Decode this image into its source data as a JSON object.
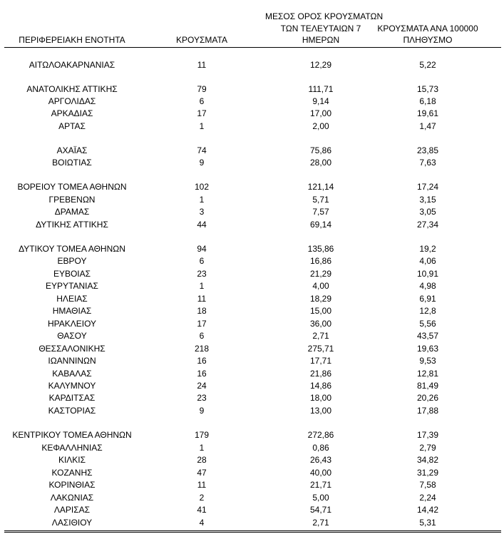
{
  "headers": {
    "region": "ΠΕΡΙΦΕΡΕΙΑΚΗ ΕΝΟΤΗΤΑ",
    "cases": "ΚΡΟΥΣΜΑΤΑ",
    "avg_line1": "ΜΕΣΟΣ ΟΡΟΣ ΚΡΟΥΣΜΑΤΩΝ",
    "avg_line2": "ΤΩΝ ΤΕΛΕΥΤΑΙΩΝ 7",
    "avg_line3": "ΗΜΕΡΩΝ",
    "per100k_line1": "ΚΡΟΥΣΜΑΤΑ ΑΝΑ 100000",
    "per100k_line2": "ΠΛΗΘΥΣΜΟ"
  },
  "rows": [
    [
      "ΑΙΤΩΛΟΑΚΑΡΝΑΝΙΑΣ",
      "11",
      "12,29",
      "5,22"
    ],
    [
      "ΑΝΑΤΟΛΙΚΗΣ ΑΤΤΙΚΗΣ",
      "79",
      "111,71",
      "15,73"
    ],
    [
      "ΑΡΓΟΛΙΔΑΣ",
      "6",
      "9,14",
      "6,18"
    ],
    [
      "ΑΡΚΑΔΙΑΣ",
      "17",
      "17,00",
      "19,61"
    ],
    [
      "ΑΡΤΑΣ",
      "1",
      "2,00",
      "1,47"
    ],
    [
      "ΑΧΑΪΑΣ",
      "74",
      "75,86",
      "23,85"
    ],
    [
      "ΒΟΙΩΤΙΑΣ",
      "9",
      "28,00",
      "7,63"
    ],
    [
      "ΒΟΡΕΙΟΥ ΤΟΜΕΑ ΑΘΗΝΩΝ",
      "102",
      "121,14",
      "17,24"
    ],
    [
      "ΓΡΕΒΕΝΩΝ",
      "1",
      "5,71",
      "3,15"
    ],
    [
      "ΔΡΑΜΑΣ",
      "3",
      "7,57",
      "3,05"
    ],
    [
      "ΔΥΤΙΚΗΣ ΑΤΤΙΚΗΣ",
      "44",
      "69,14",
      "27,34"
    ],
    [
      "ΔΥΤΙΚΟΥ ΤΟΜΕΑ ΑΘΗΝΩΝ",
      "94",
      "135,86",
      "19,2"
    ],
    [
      "ΕΒΡΟΥ",
      "6",
      "16,86",
      "4,06"
    ],
    [
      "ΕΥΒΟΙΑΣ",
      "23",
      "21,29",
      "10,91"
    ],
    [
      "ΕΥΡΥΤΑΝΙΑΣ",
      "1",
      "4,00",
      "4,98"
    ],
    [
      "ΗΛΕΙΑΣ",
      "11",
      "18,29",
      "6,91"
    ],
    [
      "ΗΜΑΘΙΑΣ",
      "18",
      "15,00",
      "12,8"
    ],
    [
      "ΗΡΑΚΛΕΙΟΥ",
      "17",
      "36,00",
      "5,56"
    ],
    [
      "ΘΑΣΟΥ",
      "6",
      "2,71",
      "43,57"
    ],
    [
      "ΘΕΣΣΑΛΟΝΙΚΗΣ",
      "218",
      "275,71",
      "19,63"
    ],
    [
      "ΙΩΑΝΝΙΝΩΝ",
      "16",
      "17,71",
      "9,53"
    ],
    [
      "ΚΑΒΑΛΑΣ",
      "16",
      "21,86",
      "12,81"
    ],
    [
      "ΚΑΛΥΜΝΟΥ",
      "24",
      "14,86",
      "81,49"
    ],
    [
      "ΚΑΡΔΙΤΣΑΣ",
      "23",
      "18,00",
      "20,26"
    ],
    [
      "ΚΑΣΤΟΡΙΑΣ",
      "9",
      "13,00",
      "17,88"
    ],
    [
      "ΚΕΝΤΡΙΚΟΥ ΤΟΜΕΑ ΑΘΗΝΩΝ",
      "179",
      "272,86",
      "17,39"
    ],
    [
      "ΚΕΦΑΛΛΗΝΙΑΣ",
      "1",
      "0,86",
      "2,79"
    ],
    [
      "ΚΙΛΚΙΣ",
      "28",
      "26,43",
      "34,82"
    ],
    [
      "ΚΟΖΑΝΗΣ",
      "47",
      "40,00",
      "31,29"
    ],
    [
      "ΚΟΡΙΝΘΙΑΣ",
      "11",
      "21,71",
      "7,58"
    ],
    [
      "ΛΑΚΩΝΙΑΣ",
      "2",
      "5,00",
      "2,24"
    ],
    [
      "ΛΑΡΙΣΑΣ",
      "41",
      "54,71",
      "14,42"
    ],
    [
      "ΛΑΣΙΘΙΟΥ",
      "4",
      "2,71",
      "5,31"
    ]
  ]
}
